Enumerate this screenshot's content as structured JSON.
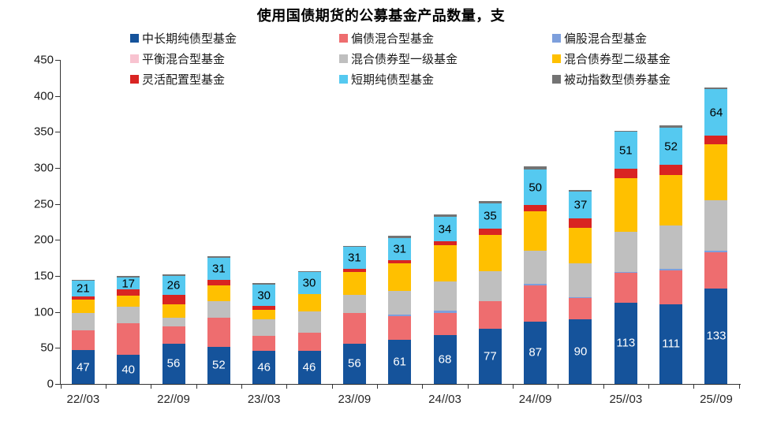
{
  "chart_data": {
    "type": "bar",
    "stacked": true,
    "title": "使用国债期货的公募基金产品数量，支",
    "unit": "支",
    "x_tick_labels": [
      "22//03",
      "22//09",
      "23//03",
      "23//09",
      "24//03",
      "24//09",
      "25//03",
      "25//09"
    ],
    "x_tick_label_bar_indices": [
      0,
      2,
      4,
      6,
      8,
      10,
      12,
      14
    ],
    "n_bars": 15,
    "y_axis": {
      "min": 0,
      "max": 450,
      "step": 50
    },
    "grid": false,
    "legend_position": "top",
    "series": [
      {
        "name": "中长期纯债型基金",
        "color": "#15539B",
        "label_color": "#ffffff",
        "show_labels": true,
        "values": [
          47,
          40,
          56,
          52,
          46,
          46,
          56,
          61,
          68,
          77,
          87,
          90,
          113,
          111,
          133
        ]
      },
      {
        "name": "偏债混合型基金",
        "color": "#EE6D6F",
        "show_labels": false,
        "values": [
          27,
          44,
          24,
          40,
          21,
          25,
          42,
          33,
          31,
          38,
          50,
          29,
          42,
          47,
          50
        ]
      },
      {
        "name": "偏股混合型基金",
        "color": "#7D9FDC",
        "show_labels": false,
        "values": [
          0,
          0,
          0,
          0,
          0,
          0,
          0,
          2,
          3,
          0,
          2,
          1,
          1,
          2,
          2
        ]
      },
      {
        "name": "平衡混合型基金",
        "color": "#F8C3D0",
        "show_labels": false,
        "values": [
          0,
          0,
          0,
          0,
          0,
          0,
          0,
          0,
          0,
          0,
          0,
          0,
          0,
          0,
          0
        ]
      },
      {
        "name": "混合债券型一级基金",
        "color": "#BFBFBF",
        "show_labels": false,
        "values": [
          24,
          23,
          12,
          23,
          23,
          30,
          26,
          33,
          40,
          42,
          46,
          47,
          55,
          60,
          70
        ]
      },
      {
        "name": "混合债券型二级基金",
        "color": "#FFC000",
        "show_labels": false,
        "values": [
          19,
          16,
          19,
          22,
          13,
          24,
          32,
          38,
          51,
          50,
          55,
          50,
          75,
          70,
          78
        ]
      },
      {
        "name": "灵活配置型基金",
        "color": "#D92422",
        "show_labels": false,
        "values": [
          5,
          8,
          13,
          7,
          5,
          0,
          4,
          5,
          5,
          9,
          8,
          13,
          13,
          14,
          12
        ]
      },
      {
        "name": "短期纯债型基金",
        "color": "#55C9F0",
        "label_color": "#000000",
        "show_labels": true,
        "values": [
          21,
          17,
          26,
          31,
          30,
          30,
          31,
          31,
          34,
          35,
          50,
          37,
          51,
          52,
          64
        ]
      },
      {
        "name": "被动指数型债券基金",
        "color": "#737373",
        "show_labels": false,
        "values": [
          1,
          2,
          2,
          2,
          2,
          2,
          1,
          3,
          3,
          3,
          4,
          2,
          2,
          3,
          3
        ]
      }
    ],
    "bar_totals": [
      144,
      150,
      152,
      177,
      140,
      157,
      192,
      206,
      235,
      254,
      302,
      269,
      352,
      359,
      412
    ]
  }
}
